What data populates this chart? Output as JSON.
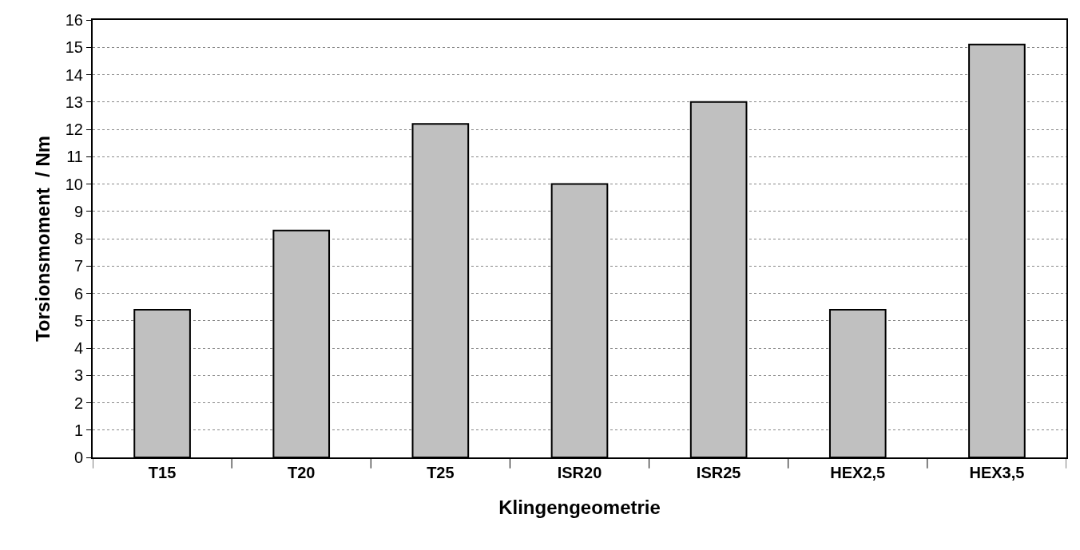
{
  "chart_data": {
    "type": "bar",
    "xlabel": "Klingengeometrie",
    "ylabel": "Torsionsmoment  / Nm",
    "categories": [
      "T15",
      "T20",
      "T25",
      "ISR20",
      "ISR25",
      "HEX2,5",
      "HEX3,5"
    ],
    "values": [
      5.4,
      8.3,
      12.2,
      10,
      13,
      5.4,
      15.1
    ],
    "color": "#c0c0c0",
    "ylim": [
      0,
      16
    ],
    "yticks": [
      0,
      1,
      2,
      3,
      4,
      5,
      6,
      7,
      8,
      9,
      10,
      11,
      12,
      13,
      14,
      15,
      16
    ],
    "grid": "y"
  }
}
